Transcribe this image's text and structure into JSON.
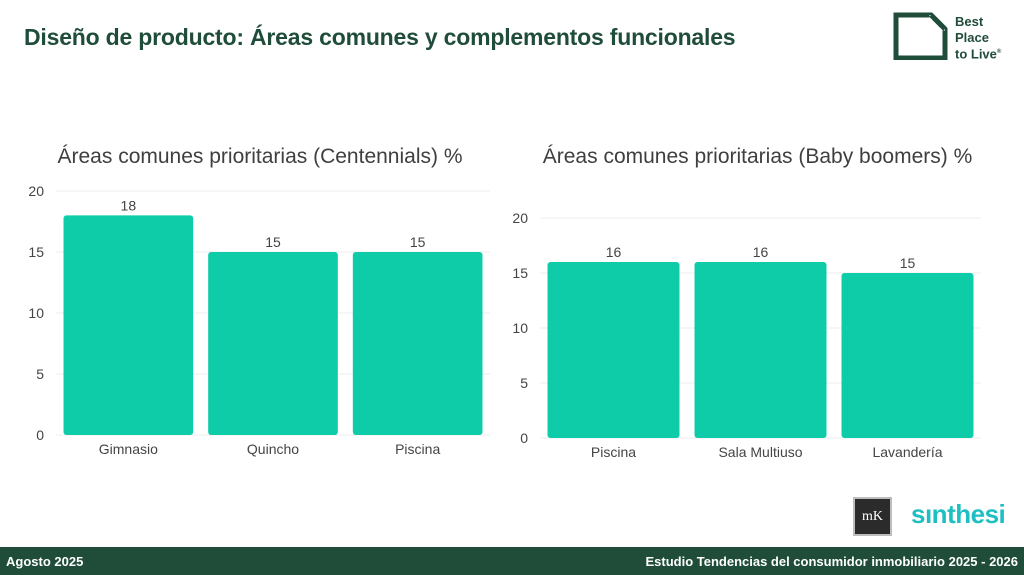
{
  "page": {
    "title": "Diseño de producto: Áreas comunes y complementos funcionales"
  },
  "brand": {
    "lines": [
      "Best",
      "Place",
      "to Live"
    ],
    "mark": "®"
  },
  "chart_data": [
    {
      "type": "bar",
      "title": "Áreas comunes prioritarias (Centennials) %",
      "categories": [
        "Gimnasio",
        "Quincho",
        "Piscina"
      ],
      "values": [
        18,
        15,
        15
      ],
      "ylim": [
        0,
        20
      ],
      "yticks": [
        0,
        5,
        10,
        15,
        20
      ],
      "grid": true,
      "color": "#0fcca8"
    },
    {
      "type": "bar",
      "title": "Áreas comunes prioritarias (Baby boomers) %",
      "categories": [
        "Piscina",
        "Sala Multiuso",
        "Lavandería"
      ],
      "values": [
        16,
        16,
        15
      ],
      "ylim": [
        0,
        20
      ],
      "yticks": [
        0,
        5,
        10,
        15,
        20
      ],
      "grid": true,
      "color": "#0fcca8"
    }
  ],
  "logos": {
    "mk": "mK",
    "synthesi": "sınthesi"
  },
  "footer": {
    "left": "Agosto 2025",
    "right": "Estudio Tendencias del consumidor inmobiliario 2025 - 2026"
  },
  "colors": {
    "brand_green": "#1f4d3a",
    "bar": "#0fcca8",
    "synthesi": "#1ebfc2"
  }
}
